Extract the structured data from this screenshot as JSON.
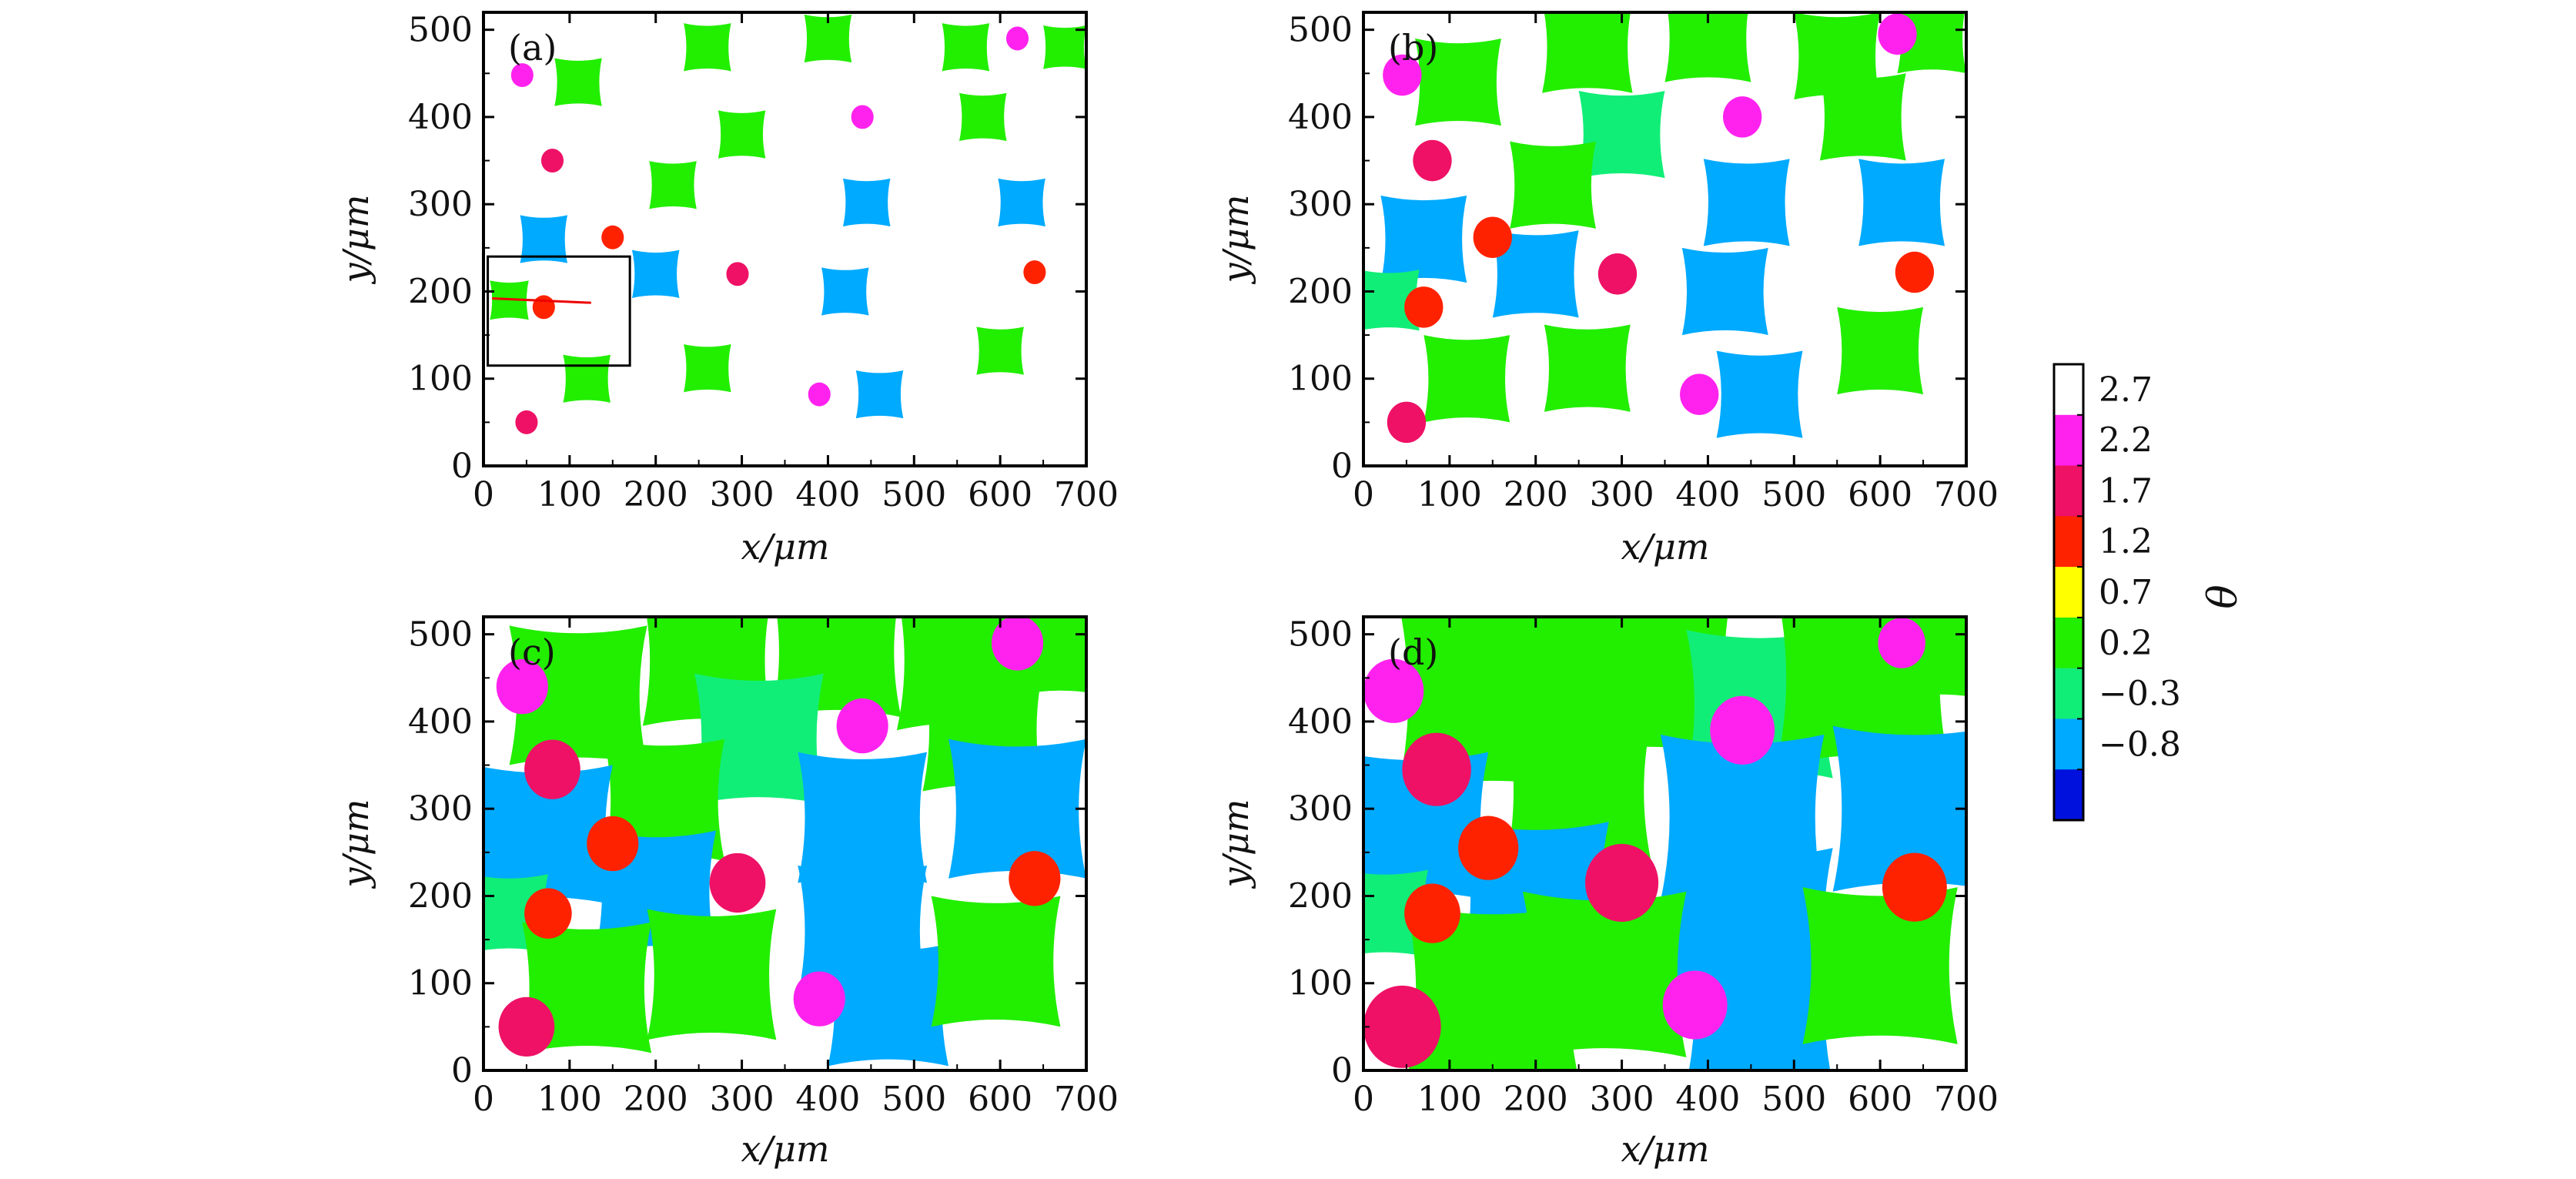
{
  "chart_data": {
    "type": "scatter",
    "description_units": "micrometres",
    "xlabel": "x/μm",
    "ylabel": "y/μm",
    "xlim": [
      0,
      700
    ],
    "ylim": [
      0,
      520
    ],
    "xticks": [
      0,
      100,
      200,
      300,
      400,
      500,
      600,
      700
    ],
    "yticks": [
      0,
      100,
      200,
      300,
      400,
      500
    ],
    "colorbar": {
      "title": "θ",
      "tick_labels": [
        "2.7",
        "2.2",
        "1.7",
        "1.2",
        "0.7",
        "0.2",
        "−0.3",
        "−0.8"
      ],
      "bands": [
        {
          "label": "2.7",
          "color": "#ffffff"
        },
        {
          "label": "2.2",
          "color": "#ff22ee"
        },
        {
          "label": "1.7",
          "color": "#ee1166"
        },
        {
          "label": "1.2",
          "color": "#ff2200"
        },
        {
          "label": "0.7",
          "color": "#ffff00"
        },
        {
          "label": "0.2",
          "color": "#22ee00"
        },
        {
          "label": "−0.3",
          "color": "#11ee77"
        },
        {
          "label": "−0.8",
          "color": "#00aaff"
        },
        {
          "label": "",
          "color": "#0011dd"
        }
      ]
    },
    "phase_colors": {
      "green": "#22ee00",
      "teal": "#11ee77",
      "blue": "#00aaff",
      "red": "#ff2200",
      "crimson": "#ee1166",
      "magenta": "#ff22ee"
    },
    "panels": [
      {
        "label": "(a)",
        "inset_box": {
          "x0": 5,
          "x1": 170,
          "y0": 115,
          "y1": 240
        },
        "inset_line": {
          "x0": 10,
          "y0": 192,
          "x1": 125,
          "y1": 187
        },
        "grains": [
          {
            "x": 260,
            "y": 480,
            "size": 55,
            "shape": "star",
            "color": "green"
          },
          {
            "x": 400,
            "y": 490,
            "size": 55,
            "shape": "star",
            "color": "green"
          },
          {
            "x": 560,
            "y": 480,
            "size": 55,
            "shape": "star",
            "color": "green"
          },
          {
            "x": 675,
            "y": 480,
            "size": 50,
            "shape": "star",
            "color": "green"
          },
          {
            "x": 110,
            "y": 440,
            "size": 55,
            "shape": "star",
            "color": "green"
          },
          {
            "x": 300,
            "y": 380,
            "size": 55,
            "shape": "star",
            "color": "green"
          },
          {
            "x": 580,
            "y": 400,
            "size": 55,
            "shape": "star",
            "color": "green"
          },
          {
            "x": 220,
            "y": 322,
            "size": 55,
            "shape": "star",
            "color": "green"
          },
          {
            "x": 70,
            "y": 260,
            "size": 55,
            "shape": "star",
            "color": "blue"
          },
          {
            "x": 445,
            "y": 302,
            "size": 55,
            "shape": "star",
            "color": "blue"
          },
          {
            "x": 625,
            "y": 302,
            "size": 55,
            "shape": "star",
            "color": "blue"
          },
          {
            "x": 200,
            "y": 220,
            "size": 55,
            "shape": "star",
            "color": "blue"
          },
          {
            "x": 420,
            "y": 200,
            "size": 55,
            "shape": "star",
            "color": "blue"
          },
          {
            "x": 30,
            "y": 190,
            "size": 45,
            "shape": "star",
            "color": "green"
          },
          {
            "x": 120,
            "y": 100,
            "size": 55,
            "shape": "star",
            "color": "green"
          },
          {
            "x": 260,
            "y": 112,
            "size": 55,
            "shape": "star",
            "color": "green"
          },
          {
            "x": 600,
            "y": 132,
            "size": 55,
            "shape": "star",
            "color": "green"
          },
          {
            "x": 460,
            "y": 82,
            "size": 55,
            "shape": "star",
            "color": "blue"
          },
          {
            "x": 45,
            "y": 448,
            "size": 26,
            "shape": "blob",
            "color": "magenta"
          },
          {
            "x": 620,
            "y": 490,
            "size": 26,
            "shape": "blob",
            "color": "magenta"
          },
          {
            "x": 440,
            "y": 400,
            "size": 26,
            "shape": "blob",
            "color": "magenta"
          },
          {
            "x": 390,
            "y": 82,
            "size": 26,
            "shape": "blob",
            "color": "magenta"
          },
          {
            "x": 80,
            "y": 350,
            "size": 26,
            "shape": "blob",
            "color": "crimson"
          },
          {
            "x": 295,
            "y": 220,
            "size": 26,
            "shape": "blob",
            "color": "crimson"
          },
          {
            "x": 50,
            "y": 50,
            "size": 26,
            "shape": "blob",
            "color": "crimson"
          },
          {
            "x": 150,
            "y": 262,
            "size": 26,
            "shape": "blob",
            "color": "red"
          },
          {
            "x": 640,
            "y": 222,
            "size": 26,
            "shape": "blob",
            "color": "red"
          },
          {
            "x": 70,
            "y": 182,
            "size": 26,
            "shape": "blob",
            "color": "red"
          }
        ]
      },
      {
        "label": "(b)",
        "grains": [
          {
            "x": 110,
            "y": 440,
            "size": 100,
            "shape": "star",
            "color": "green"
          },
          {
            "x": 260,
            "y": 480,
            "size": 105,
            "shape": "star",
            "color": "green"
          },
          {
            "x": 400,
            "y": 490,
            "size": 100,
            "shape": "star",
            "color": "green"
          },
          {
            "x": 550,
            "y": 470,
            "size": 100,
            "shape": "star",
            "color": "green"
          },
          {
            "x": 660,
            "y": 490,
            "size": 80,
            "shape": "star",
            "color": "green"
          },
          {
            "x": 300,
            "y": 380,
            "size": 100,
            "shape": "star",
            "color": "teal"
          },
          {
            "x": 580,
            "y": 400,
            "size": 100,
            "shape": "star",
            "color": "green"
          },
          {
            "x": 220,
            "y": 322,
            "size": 100,
            "shape": "star",
            "color": "green"
          },
          {
            "x": 70,
            "y": 260,
            "size": 100,
            "shape": "star",
            "color": "blue"
          },
          {
            "x": 445,
            "y": 302,
            "size": 100,
            "shape": "star",
            "color": "blue"
          },
          {
            "x": 625,
            "y": 302,
            "size": 100,
            "shape": "star",
            "color": "blue"
          },
          {
            "x": 200,
            "y": 220,
            "size": 100,
            "shape": "star",
            "color": "blue"
          },
          {
            "x": 420,
            "y": 200,
            "size": 100,
            "shape": "star",
            "color": "blue"
          },
          {
            "x": 30,
            "y": 190,
            "size": 70,
            "shape": "star",
            "color": "teal"
          },
          {
            "x": 120,
            "y": 100,
            "size": 100,
            "shape": "star",
            "color": "green"
          },
          {
            "x": 260,
            "y": 112,
            "size": 100,
            "shape": "star",
            "color": "green"
          },
          {
            "x": 600,
            "y": 132,
            "size": 100,
            "shape": "star",
            "color": "green"
          },
          {
            "x": 460,
            "y": 82,
            "size": 100,
            "shape": "star",
            "color": "blue"
          },
          {
            "x": 45,
            "y": 448,
            "size": 45,
            "shape": "blob",
            "color": "magenta"
          },
          {
            "x": 620,
            "y": 495,
            "size": 45,
            "shape": "blob",
            "color": "magenta"
          },
          {
            "x": 440,
            "y": 400,
            "size": 45,
            "shape": "blob",
            "color": "magenta"
          },
          {
            "x": 390,
            "y": 82,
            "size": 45,
            "shape": "blob",
            "color": "magenta"
          },
          {
            "x": 80,
            "y": 350,
            "size": 45,
            "shape": "blob",
            "color": "crimson"
          },
          {
            "x": 295,
            "y": 220,
            "size": 45,
            "shape": "blob",
            "color": "crimson"
          },
          {
            "x": 50,
            "y": 50,
            "size": 45,
            "shape": "blob",
            "color": "crimson"
          },
          {
            "x": 150,
            "y": 262,
            "size": 45,
            "shape": "blob",
            "color": "red"
          },
          {
            "x": 640,
            "y": 222,
            "size": 45,
            "shape": "blob",
            "color": "red"
          },
          {
            "x": 70,
            "y": 182,
            "size": 45,
            "shape": "blob",
            "color": "red"
          }
        ]
      },
      {
        "label": "(c)",
        "grains": [
          {
            "x": 110,
            "y": 430,
            "size": 160,
            "shape": "star",
            "color": "green"
          },
          {
            "x": 260,
            "y": 470,
            "size": 150,
            "shape": "star",
            "color": "green"
          },
          {
            "x": 410,
            "y": 480,
            "size": 150,
            "shape": "star",
            "color": "green"
          },
          {
            "x": 560,
            "y": 470,
            "size": 160,
            "shape": "star",
            "color": "green"
          },
          {
            "x": 670,
            "y": 480,
            "size": 100,
            "shape": "star",
            "color": "green"
          },
          {
            "x": 320,
            "y": 380,
            "size": 150,
            "shape": "star",
            "color": "teal"
          },
          {
            "x": 580,
            "y": 390,
            "size": 140,
            "shape": "star",
            "color": "green"
          },
          {
            "x": 210,
            "y": 310,
            "size": 140,
            "shape": "star",
            "color": "green"
          },
          {
            "x": 70,
            "y": 270,
            "size": 160,
            "shape": "star",
            "color": "blue"
          },
          {
            "x": 620,
            "y": 300,
            "size": 160,
            "shape": "star",
            "color": "blue"
          },
          {
            "x": 200,
            "y": 205,
            "size": 140,
            "shape": "star",
            "color": "blue"
          },
          {
            "x": 440,
            "y": 290,
            "size": 150,
            "shape": "star",
            "color": "blue"
          },
          {
            "x": 440,
            "y": 160,
            "size": 150,
            "shape": "star",
            "color": "blue"
          },
          {
            "x": 470,
            "y": 75,
            "size": 140,
            "shape": "star",
            "color": "blue"
          },
          {
            "x": 30,
            "y": 180,
            "size": 90,
            "shape": "star",
            "color": "teal"
          },
          {
            "x": 120,
            "y": 95,
            "size": 150,
            "shape": "star",
            "color": "green"
          },
          {
            "x": 265,
            "y": 110,
            "size": 150,
            "shape": "star",
            "color": "green"
          },
          {
            "x": 595,
            "y": 125,
            "size": 150,
            "shape": "star",
            "color": "green"
          },
          {
            "x": 45,
            "y": 440,
            "size": 60,
            "shape": "blob",
            "color": "magenta"
          },
          {
            "x": 620,
            "y": 490,
            "size": 60,
            "shape": "blob",
            "color": "magenta"
          },
          {
            "x": 440,
            "y": 395,
            "size": 60,
            "shape": "blob",
            "color": "magenta"
          },
          {
            "x": 390,
            "y": 82,
            "size": 60,
            "shape": "blob",
            "color": "magenta"
          },
          {
            "x": 80,
            "y": 345,
            "size": 65,
            "shape": "blob",
            "color": "crimson"
          },
          {
            "x": 295,
            "y": 215,
            "size": 65,
            "shape": "blob",
            "color": "crimson"
          },
          {
            "x": 50,
            "y": 50,
            "size": 65,
            "shape": "blob",
            "color": "crimson"
          },
          {
            "x": 150,
            "y": 260,
            "size": 60,
            "shape": "blob",
            "color": "red"
          },
          {
            "x": 640,
            "y": 220,
            "size": 60,
            "shape": "blob",
            "color": "red"
          },
          {
            "x": 75,
            "y": 180,
            "size": 55,
            "shape": "blob",
            "color": "red"
          }
        ]
      },
      {
        "label": "(d)",
        "grains": [
          {
            "x": 150,
            "y": 430,
            "size": 220,
            "shape": "star",
            "color": "green"
          },
          {
            "x": 330,
            "y": 460,
            "size": 200,
            "shape": "star",
            "color": "green"
          },
          {
            "x": 460,
            "y": 420,
            "size": 170,
            "shape": "star",
            "color": "teal"
          },
          {
            "x": 580,
            "y": 450,
            "size": 200,
            "shape": "star",
            "color": "green"
          },
          {
            "x": 670,
            "y": 480,
            "size": 110,
            "shape": "star",
            "color": "green"
          },
          {
            "x": 250,
            "y": 320,
            "size": 170,
            "shape": "star",
            "color": "green"
          },
          {
            "x": 60,
            "y": 280,
            "size": 170,
            "shape": "star",
            "color": "blue"
          },
          {
            "x": 640,
            "y": 300,
            "size": 190,
            "shape": "star",
            "color": "blue"
          },
          {
            "x": 200,
            "y": 200,
            "size": 170,
            "shape": "star",
            "color": "blue"
          },
          {
            "x": 440,
            "y": 290,
            "size": 190,
            "shape": "star",
            "color": "blue"
          },
          {
            "x": 450,
            "y": 160,
            "size": 190,
            "shape": "star",
            "color": "blue"
          },
          {
            "x": 460,
            "y": 70,
            "size": 170,
            "shape": "star",
            "color": "blue"
          },
          {
            "x": 25,
            "y": 180,
            "size": 100,
            "shape": "star",
            "color": "teal"
          },
          {
            "x": 150,
            "y": 90,
            "size": 200,
            "shape": "star",
            "color": "green"
          },
          {
            "x": 280,
            "y": 110,
            "size": 190,
            "shape": "star",
            "color": "green"
          },
          {
            "x": 600,
            "y": 120,
            "size": 180,
            "shape": "star",
            "color": "green"
          },
          {
            "x": 35,
            "y": 435,
            "size": 70,
            "shape": "blob",
            "color": "magenta"
          },
          {
            "x": 625,
            "y": 490,
            "size": 55,
            "shape": "blob",
            "color": "magenta"
          },
          {
            "x": 440,
            "y": 390,
            "size": 75,
            "shape": "blob",
            "color": "magenta"
          },
          {
            "x": 385,
            "y": 75,
            "size": 75,
            "shape": "blob",
            "color": "magenta"
          },
          {
            "x": 85,
            "y": 345,
            "size": 80,
            "shape": "blob",
            "color": "crimson"
          },
          {
            "x": 300,
            "y": 215,
            "size": 85,
            "shape": "blob",
            "color": "crimson"
          },
          {
            "x": 45,
            "y": 50,
            "size": 90,
            "shape": "blob",
            "color": "crimson"
          },
          {
            "x": 145,
            "y": 255,
            "size": 70,
            "shape": "blob",
            "color": "red"
          },
          {
            "x": 640,
            "y": 210,
            "size": 75,
            "shape": "blob",
            "color": "red"
          },
          {
            "x": 80,
            "y": 180,
            "size": 65,
            "shape": "blob",
            "color": "red"
          }
        ]
      }
    ]
  }
}
